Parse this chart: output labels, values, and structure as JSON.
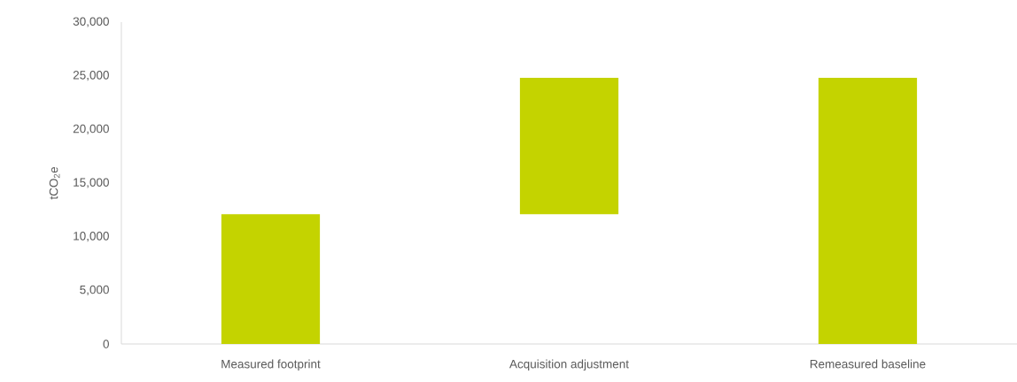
{
  "chart_data": {
    "type": "bar",
    "ylabel": "tCO$_{2}$e",
    "categories": [
      "Measured footprint",
      "Acquisition adjustment",
      "Remeasured baseline"
    ],
    "values": [
      12100,
      12700,
      24800
    ],
    "base": [
      0,
      12100,
      0
    ],
    "color": "#c4d300",
    "ylim": [
      0,
      30000
    ],
    "yticks": [
      {
        "value": 0,
        "label": "0"
      },
      {
        "value": 5000,
        "label": "5,000"
      },
      {
        "value": 10000,
        "label": "10,000"
      },
      {
        "value": 15000,
        "label": "15,000"
      },
      {
        "value": 20000,
        "label": "20,000"
      },
      {
        "value": 25000,
        "label": "25,000"
      },
      {
        "value": 30000,
        "label": "30,000"
      }
    ],
    "grid": false
  }
}
